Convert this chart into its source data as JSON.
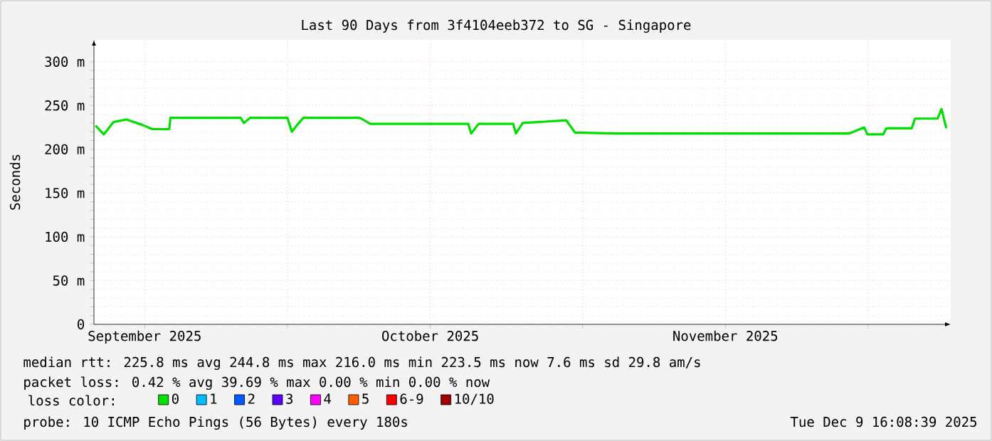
{
  "chart_data": {
    "type": "line",
    "title": "Last 90 Days from 3f4104eeb372 to SG - Singapore",
    "ylabel": "Seconds",
    "xlim": [
      "2025-09-10T16:08",
      "2025-12-09T16:08"
    ],
    "xticks": [
      {
        "value": "2025-09-16",
        "label": "September 2025"
      },
      {
        "value": "2025-10-01",
        "label": null
      },
      {
        "value": "2025-10-16",
        "label": "October 2025"
      },
      {
        "value": "2025-11-01",
        "label": null
      },
      {
        "value": "2025-11-16",
        "label": "November 2025"
      },
      {
        "value": "2025-12-01",
        "label": null
      }
    ],
    "ylim": [
      0,
      325
    ],
    "yticks": [
      {
        "value": 0,
        "label": "0"
      },
      {
        "value": 50,
        "label": "50 m"
      },
      {
        "value": 100,
        "label": "100 m"
      },
      {
        "value": 150,
        "label": "150 m"
      },
      {
        "value": 200,
        "label": "200 m"
      },
      {
        "value": 250,
        "label": "250 m"
      },
      {
        "value": 300,
        "label": "300 m"
      }
    ],
    "grid": true,
    "legend": "bottom",
    "legend_title": "loss color:",
    "series": [
      {
        "name": "0",
        "color": "#00e000",
        "x": [
          "2025-09-10T20:00",
          "2025-09-11T17:00",
          "2025-09-12T17:00",
          "2025-09-14T02:00",
          "2025-09-15T17:00",
          "2025-09-16T19:00",
          "2025-09-18T14:00",
          "2025-09-18T17:00",
          "2025-09-26T02:00",
          "2025-09-26T10:00",
          "2025-09-27T02:00",
          "2025-10-01T00:00",
          "2025-10-01T11:00",
          "2025-10-02T01:00",
          "2025-10-02T16:00",
          "2025-10-08T14:00",
          "2025-10-09T17:00",
          "2025-10-20T00:00",
          "2025-10-20T07:00",
          "2025-10-21T02:00",
          "2025-10-24T17:00",
          "2025-10-25T00:00",
          "2025-10-25T17:00",
          "2025-10-30T07:00",
          "2025-10-31T05:00",
          "2025-11-04T07:00",
          "2025-11-29T00:00",
          "2025-11-30T14:00",
          "2025-11-30T22:00",
          "2025-12-02T14:00",
          "2025-12-02T22:00",
          "2025-12-05T14:00",
          "2025-12-05T22:00",
          "2025-12-08T07:00",
          "2025-12-08T17:00",
          "2025-12-09T05:00"
        ],
        "values": [
          227,
          217,
          231,
          234,
          228,
          223,
          223,
          236,
          236,
          230,
          236,
          236,
          220,
          228,
          236,
          236,
          229,
          229,
          218,
          229,
          229,
          218,
          230,
          233,
          219,
          218,
          218,
          225,
          217,
          217,
          224,
          224,
          235,
          235,
          246,
          224
        ]
      },
      {
        "name": "1",
        "color": "#00bbff"
      },
      {
        "name": "2",
        "color": "#0059ff"
      },
      {
        "name": "3",
        "color": "#5e00ff"
      },
      {
        "name": "4",
        "color": "#ff00ff"
      },
      {
        "name": "5",
        "color": "#ff5e00"
      },
      {
        "name": "6-9",
        "color": "#ff0000"
      },
      {
        "name": "10/10",
        "color": "#a00000"
      }
    ],
    "annotations": [
      "median rtt:  225.8 ms avg  244.8 ms max  216.0 ms min  223.5 ms now  7.6 ms sd  29.8   am/s",
      "packet loss: 0.42 % avg  39.69 % max  0.00 % min  0.00 % now",
      "probe:       10 ICMP Echo Pings (56 Bytes) every 180s",
      "Tue Dec  9 16:08:39 2025"
    ]
  }
}
